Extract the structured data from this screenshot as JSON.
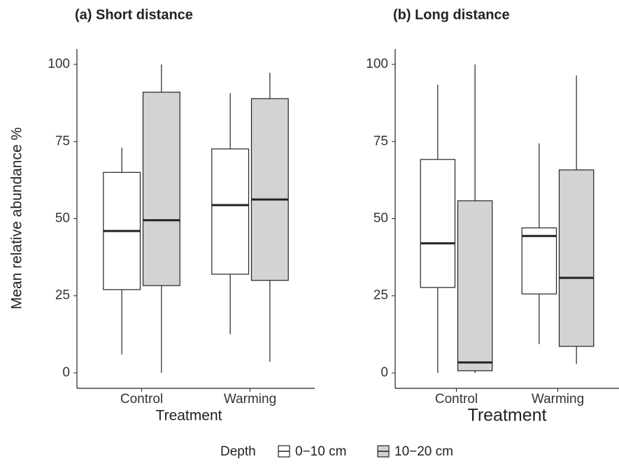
{
  "chart_data": [
    {
      "type": "box",
      "title": "(a) Short distance",
      "x_label": "Treatment",
      "y_label": "Mean relative abundance %",
      "categories": [
        "Control",
        "Warming"
      ],
      "legend_title": "Depth",
      "series": [
        {
          "name": "0−10 cm",
          "color": "#ffffff",
          "values": [
            {
              "min": 6,
              "q1": 27,
              "median": 46,
              "q3": 65,
              "max": 73
            },
            {
              "min": 12.5,
              "q1": 32,
              "median": 54.4,
              "q3": 72.6,
              "max": 90.7
            }
          ]
        },
        {
          "name": "10−20 cm",
          "color": "#d3d3d3",
          "values": [
            {
              "min": 0,
              "q1": 28.3,
              "median": 49.5,
              "q3": 91,
              "max": 100
            },
            {
              "min": 3.6,
              "q1": 30,
              "median": 56.2,
              "q3": 88.9,
              "max": 97.3
            }
          ]
        }
      ],
      "ylim": [
        -5,
        105
      ],
      "yticks": [
        0,
        25,
        50,
        75,
        100
      ]
    },
    {
      "type": "box",
      "title": "(b) Long distance",
      "x_label": "Treatment",
      "categories": [
        "Control",
        "Warming"
      ],
      "series": [
        {
          "color": "#ffffff",
          "values": [
            {
              "min": 0,
              "q1": 27.7,
              "median": 42,
              "q3": 69.2,
              "max": 93.4
            },
            {
              "min": 9.3,
              "q1": 25.6,
              "median": 44.4,
              "q3": 47,
              "max": 74.4
            }
          ]
        },
        {
          "color": "#d3d3d3",
          "values": [
            {
              "min": 0,
              "q1": 0.7,
              "median": 3.4,
              "q3": 55.8,
              "max": 100
            },
            {
              "min": 2.9,
              "q1": 8.6,
              "median": 30.8,
              "q3": 65.8,
              "max": 96.4
            }
          ]
        }
      ],
      "ylim": [
        -5,
        105
      ],
      "yticks": [
        0,
        25,
        50,
        75,
        100
      ]
    }
  ]
}
